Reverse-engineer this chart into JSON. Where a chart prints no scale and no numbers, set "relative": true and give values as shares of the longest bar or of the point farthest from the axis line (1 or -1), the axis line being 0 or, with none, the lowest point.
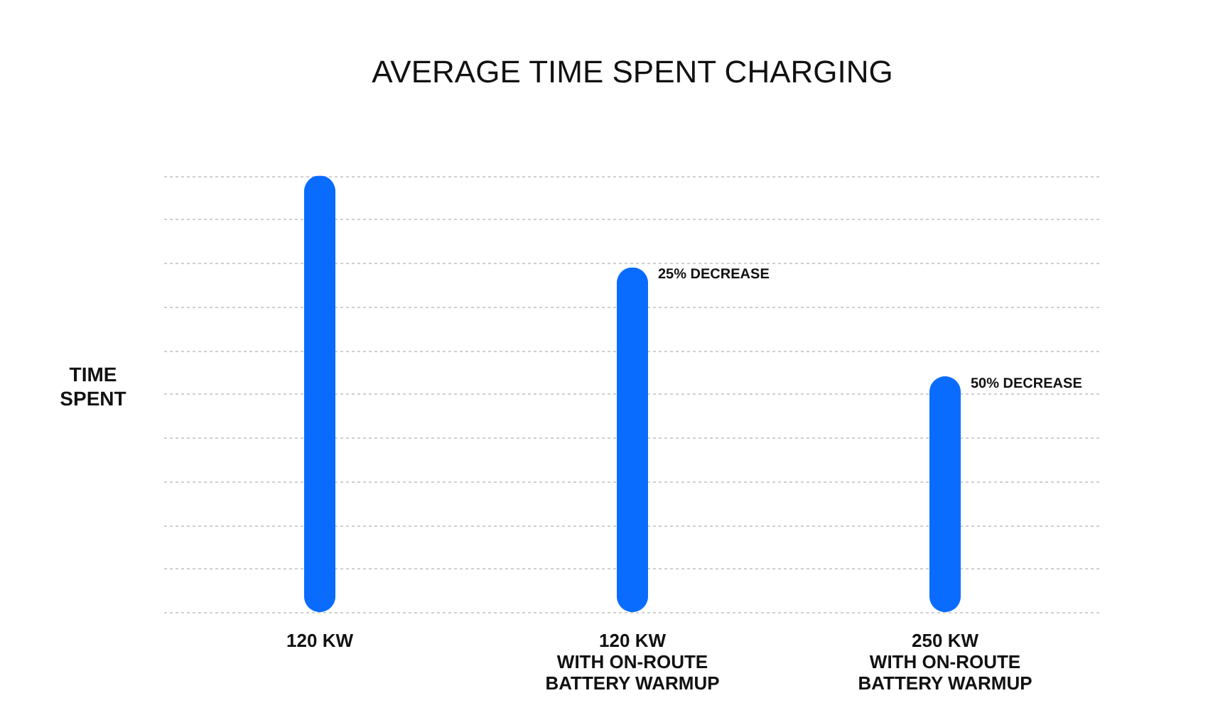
{
  "chart_data": {
    "type": "bar",
    "title": "AVERAGE TIME SPENT CHARGING",
    "ylabel": "TIME SPENT",
    "categories": [
      "120 KW",
      "120 KW\nWITH ON-ROUTE\nBATTERY WARMUP",
      "250 KW\nWITH ON-ROUTE\nBATTERY WARMUP"
    ],
    "values": [
      1,
      0.79,
      0.54
    ],
    "color": "#0a6cff",
    "relative": true,
    "grid": true,
    "annotations": [
      {
        "text": "25% DECREASE",
        "x": "120 KW\nWITH ON-ROUTE\nBATTERY WARMUP",
        "y": 0.79
      },
      {
        "text": "50% DECREASE",
        "x": "250 KW\nWITH ON-ROUTE\nBATTERY WARMUP",
        "y": 0.54
      }
    ]
  }
}
